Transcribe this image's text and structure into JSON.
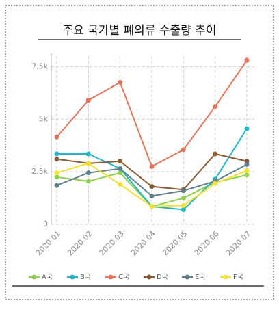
{
  "chart_data": {
    "type": "line",
    "title": "주요 국가별 폐의류 수출량 추이",
    "categories": [
      "2020.01",
      "2020.02",
      "2020.03",
      "2020.04",
      "2020.05",
      "2020.06",
      "2020.07"
    ],
    "series": [
      {
        "name": "A국",
        "color": "#8fd14f",
        "values": [
          2250,
          2050,
          2450,
          850,
          1250,
          2000,
          2350
        ]
      },
      {
        "name": "B국",
        "color": "#1fb8c8",
        "values": [
          3350,
          3350,
          2650,
          850,
          700,
          2150,
          4550
        ]
      },
      {
        "name": "C국",
        "color": "#e8735a",
        "values": [
          4150,
          5900,
          6750,
          2750,
          3550,
          5600,
          7800
        ]
      },
      {
        "name": "D국",
        "color": "#8b5a32",
        "values": [
          3100,
          2900,
          3000,
          1800,
          1650,
          3350,
          3000
        ]
      },
      {
        "name": "E국",
        "color": "#5f7f8c",
        "values": [
          1850,
          2450,
          2650,
          1350,
          1600,
          2050,
          2850
        ]
      },
      {
        "name": "F국",
        "color": "#f5e12a",
        "values": [
          2450,
          2900,
          1900,
          850,
          900,
          1950,
          2550
        ]
      }
    ],
    "ylim": [
      0,
      8000
    ],
    "yticks": [
      0,
      {
        "value": 2500,
        "label": "2.5k"
      },
      {
        "value": 5000,
        "label": "5k"
      },
      {
        "value": 7500,
        "label": "7.5k"
      }
    ],
    "grid": true
  }
}
